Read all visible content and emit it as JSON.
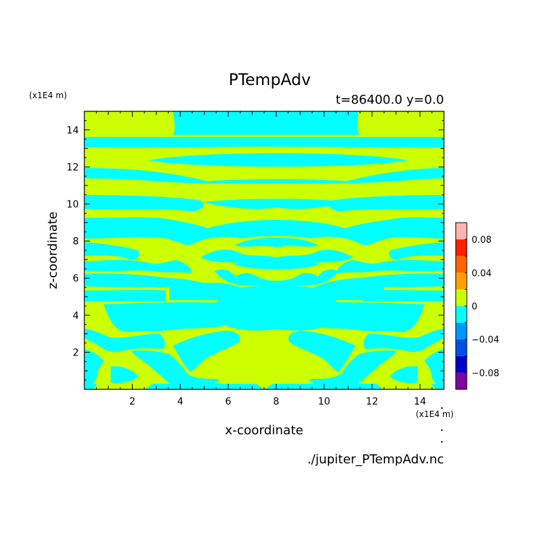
{
  "chart_data": {
    "type": "heatmap",
    "title": "PTempAdv",
    "subtitle": "t=86400.0 y=0.0",
    "xlabel": "x-coordinate",
    "ylabel": "z-coordinate",
    "x_unit": "(x1E4 m)",
    "y_unit": "(x1E4 m)",
    "source_file": "./jupiter_PTempAdv.nc",
    "xlim": [
      0,
      15
    ],
    "ylim": [
      0,
      15
    ],
    "x_ticks": [
      2,
      4,
      6,
      8,
      10,
      12,
      14
    ],
    "y_ticks": [
      2,
      4,
      6,
      8,
      10,
      12,
      14
    ],
    "grid": false,
    "colorbar": {
      "placement": "right",
      "levels": [
        -0.1,
        -0.08,
        -0.06,
        -0.04,
        -0.02,
        0,
        0.02,
        0.04,
        0.06,
        0.08,
        0.1
      ],
      "colors": [
        "#8000a0",
        "#0000c8",
        "#0050e6",
        "#0096ff",
        "#00ffff",
        "#ccff00",
        "#ffa000",
        "#ff6400",
        "#ff1e00",
        "#ffb4b4"
      ],
      "tick_values": [
        -0.08,
        -0.04,
        0,
        0.04,
        0.08
      ],
      "tick_labels": [
        "−0.08",
        "−0.04",
        "0",
        "0.04",
        "0.08"
      ]
    },
    "field": {
      "description_colors": {
        "positive": "#ccff00",
        "negative": "#00ffff"
      },
      "background_color": "#ccff00"
    }
  }
}
